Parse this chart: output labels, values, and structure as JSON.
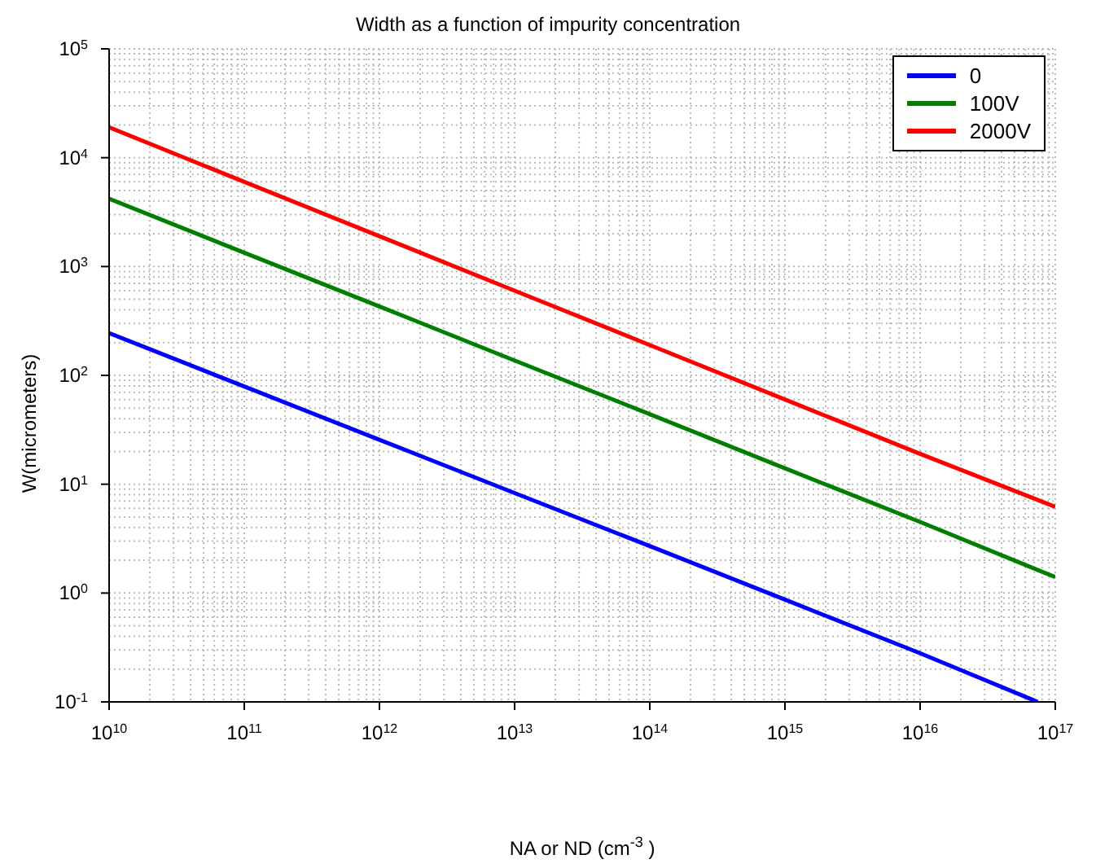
{
  "chart_data": {
    "type": "line",
    "title": "Width as a function of impurity concentration",
    "xlabel": "NA or ND (cm$^{-3}$)",
    "ylabel": "W(micrometers)",
    "log": "xy",
    "grid": true,
    "legend": "top right",
    "line_style": "solid",
    "marker": "none",
    "xlim": [
      10000000000.0,
      1e+17
    ],
    "ylim": [
      0.1,
      100000
    ],
    "xticks": [
      {
        "value": 10000000000.0,
        "label": "10$^{10}$"
      },
      {
        "value": 100000000000.0,
        "label": "10$^{11}$"
      },
      {
        "value": 1000000000000.0,
        "label": "10$^{12}$"
      },
      {
        "value": 10000000000000.0,
        "label": "10$^{13}$"
      },
      {
        "value": 100000000000000.0,
        "label": "10$^{14}$"
      },
      {
        "value": 1000000000000000.0,
        "label": "10$^{15}$"
      },
      {
        "value": 1e+16,
        "label": "10$^{16}$"
      },
      {
        "value": 1e+17,
        "label": "10$^{17}$"
      }
    ],
    "yticks": [
      {
        "value": 0.1,
        "label": "10$^{-1}$"
      },
      {
        "value": 1,
        "label": "10$^{0}$"
      },
      {
        "value": 10,
        "label": "10$^{1}$"
      },
      {
        "value": 100,
        "label": "10$^{2}$"
      },
      {
        "value": 1000,
        "label": "10$^{3}$"
      },
      {
        "value": 10000,
        "label": "10$^{4}$"
      },
      {
        "value": 100000,
        "label": "10$^{5}$"
      }
    ],
    "series": [
      {
        "name": "0",
        "color": "#0000ff",
        "x": [
          10000000000.0,
          100000000000.0,
          1000000000000.0,
          10000000000000.0,
          100000000000000.0,
          1000000000000000.0,
          1e+16,
          7.4e+16
        ],
        "values": [
          245,
          79,
          25.6,
          8.3,
          2.7,
          0.87,
          0.28,
          0.1
        ]
      },
      {
        "name": "100V",
        "color": "#007f00",
        "x": [
          10000000000.0,
          100000000000.0,
          1000000000000.0,
          10000000000000.0,
          100000000000000.0,
          1000000000000000.0,
          1e+16,
          1e+17
        ],
        "values": [
          4200,
          1340,
          430,
          137,
          44,
          14,
          4.5,
          1.4
        ]
      },
      {
        "name": "2000V",
        "color": "#ff0000",
        "x": [
          10000000000.0,
          100000000000.0,
          1000000000000.0,
          10000000000000.0,
          100000000000000.0,
          1000000000000000.0,
          1e+16,
          1e+17
        ],
        "values": [
          19000,
          6000,
          1900,
          600,
          190,
          60,
          19,
          6.2
        ]
      }
    ]
  }
}
